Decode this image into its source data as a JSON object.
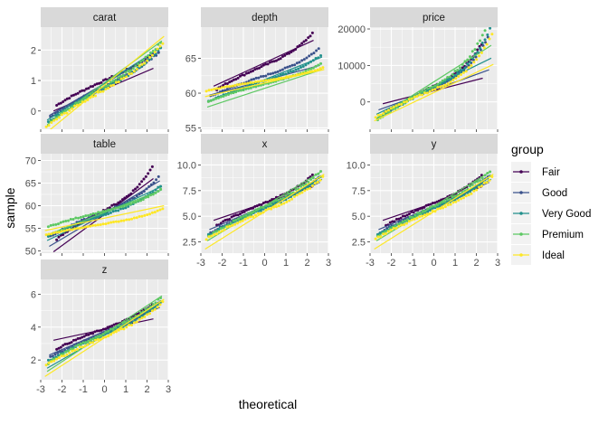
{
  "chart_data": {
    "type": "scatter",
    "subtype": "qq-plot-faceted",
    "xlabel": "theoretical",
    "ylabel": "sample",
    "legend": {
      "title": "group",
      "position": "right",
      "entries": [
        "Fair",
        "Good",
        "Very Good",
        "Premium",
        "Ideal"
      ]
    },
    "colors": {
      "Fair": "#440154",
      "Good": "#3b528b",
      "Very Good": "#21908c",
      "Premium": "#5dc863",
      "Ideal": "#fde725",
      "panel_bg": "#ebebeb",
      "strip_bg": "#d9d9d9",
      "grid": "#ffffff"
    },
    "x_ticks": [
      -3,
      -2,
      -1,
      0,
      1,
      2,
      3
    ],
    "x_tick_labels": [
      "-3",
      "-2",
      "-1",
      "0",
      "1",
      "2",
      "3"
    ],
    "x_range": [
      -3,
      3
    ],
    "facets": [
      {
        "name": "carat",
        "ylim": [
          -0.6,
          2.75
        ],
        "y_ticks": [
          0,
          1,
          2
        ],
        "y_tick_labels": [
          "0",
          "1",
          "2"
        ],
        "show_x_axis": false,
        "series": [
          {
            "group": "Fair",
            "line": [
              [
                -2.4,
                0.0
              ],
              [
                2.3,
                1.4
              ]
            ],
            "xmin": -2.3,
            "xmax": 2.3,
            "center": 1.0,
            "spread": 0.33,
            "tail": 0.6
          },
          {
            "group": "Good",
            "line": [
              [
                -2.6,
                -0.15
              ],
              [
                2.6,
                1.95
              ]
            ],
            "xmin": -2.6,
            "xmax": 2.6,
            "center": 0.8,
            "spread": 0.4,
            "tail": 0.9
          },
          {
            "group": "Very Good",
            "line": [
              [
                -2.7,
                -0.3
              ],
              [
                2.7,
                2.1
              ]
            ],
            "xmin": -2.7,
            "xmax": 2.7,
            "center": 0.75,
            "spread": 0.45,
            "tail": 1.1
          },
          {
            "group": "Premium",
            "line": [
              [
                -2.7,
                -0.45
              ],
              [
                2.7,
                2.3
              ]
            ],
            "xmin": -2.7,
            "xmax": 2.7,
            "center": 0.8,
            "spread": 0.5,
            "tail": 1.0
          },
          {
            "group": "Ideal",
            "line": [
              [
                -2.8,
                -0.75
              ],
              [
                2.8,
                2.45
              ]
            ],
            "xmin": -2.8,
            "xmax": 2.8,
            "center": 0.7,
            "spread": 0.5,
            "tail": 1.3
          }
        ]
      },
      {
        "name": "depth",
        "ylim": [
          54.8,
          69.5
        ],
        "y_ticks": [
          55,
          60,
          65
        ],
        "y_tick_labels": [
          "55",
          "60",
          "65"
        ],
        "show_x_axis": false,
        "series": [
          {
            "group": "Fair",
            "line": [
              [
                -2.4,
                61.0
              ],
              [
                2.3,
                67.6
              ]
            ],
            "xmin": -2.3,
            "xmax": 2.3,
            "center": 64.0,
            "spread": 1.4,
            "tail": 1.6
          },
          {
            "group": "Good",
            "line": [
              [
                -2.6,
                59.7
              ],
              [
                2.6,
                64.0
              ]
            ],
            "xmin": -2.6,
            "xmax": 2.6,
            "center": 62.5,
            "spread": 1.2,
            "tail": 1.5
          },
          {
            "group": "Very Good",
            "line": [
              [
                -2.7,
                58.7
              ],
              [
                2.7,
                65.2
              ]
            ],
            "xmin": -2.7,
            "xmax": 2.7,
            "center": 61.8,
            "spread": 1.2,
            "tail": 1.2
          },
          {
            "group": "Premium",
            "line": [
              [
                -2.7,
                58.0
              ],
              [
                2.7,
                63.4
              ]
            ],
            "xmin": -2.7,
            "xmax": 2.7,
            "center": 61.3,
            "spread": 1.0,
            "tail": 1.1
          },
          {
            "group": "Ideal",
            "line": [
              [
                -2.8,
                59.5
              ],
              [
                2.8,
                63.4
              ]
            ],
            "xmin": -2.8,
            "xmax": 2.8,
            "center": 61.8,
            "spread": 0.6,
            "tail": 1.3
          }
        ]
      },
      {
        "name": "price",
        "ylim": [
          -7500,
          20500
        ],
        "y_ticks": [
          0,
          10000,
          20000
        ],
        "y_tick_labels": [
          "0",
          "10000",
          "20000"
        ],
        "show_x_axis": false,
        "series": [
          {
            "group": "Fair",
            "line": [
              [
                -2.4,
                -500
              ],
              [
                2.3,
                6500
              ]
            ],
            "xmin": -2.3,
            "xmax": 2.3,
            "center": 4300,
            "spread": 3000,
            "tail": 2.4
          },
          {
            "group": "Good",
            "line": [
              [
                -2.6,
                -2200
              ],
              [
                2.6,
                8800
              ]
            ],
            "xmin": -2.6,
            "xmax": 2.6,
            "center": 3900,
            "spread": 3200,
            "tail": 3.0
          },
          {
            "group": "Very Good",
            "line": [
              [
                -2.7,
                -3400
              ],
              [
                2.7,
                12000
              ]
            ],
            "xmin": -2.7,
            "xmax": 2.7,
            "center": 3900,
            "spread": 3500,
            "tail": 3.4
          },
          {
            "group": "Premium",
            "line": [
              [
                -2.7,
                -4500
              ],
              [
                2.7,
                15500
              ]
            ],
            "xmin": -2.7,
            "xmax": 2.7,
            "center": 4500,
            "spread": 3900,
            "tail": 3.6
          },
          {
            "group": "Ideal",
            "line": [
              [
                -2.8,
                -5200
              ],
              [
                2.8,
                10300
              ]
            ],
            "xmin": -2.8,
            "xmax": 2.8,
            "center": 3400,
            "spread": 3100,
            "tail": 3.8
          }
        ]
      },
      {
        "name": "table",
        "ylim": [
          49.5,
          71.5
        ],
        "y_ticks": [
          50,
          55,
          60,
          65,
          70
        ],
        "y_tick_labels": [
          "50",
          "55",
          "60",
          "65",
          "70"
        ],
        "show_x_axis": false,
        "series": [
          {
            "group": "Fair",
            "line": [
              [
                -2.4,
                49.8
              ],
              [
                2.3,
                66.0
              ]
            ],
            "xmin": -2.3,
            "xmax": 2.3,
            "center": 59.0,
            "spread": 2.6,
            "tail": 2.2
          },
          {
            "group": "Good",
            "line": [
              [
                -2.6,
                51.0
              ],
              [
                2.6,
                65.5
              ]
            ],
            "xmin": -2.6,
            "xmax": 2.6,
            "center": 58.7,
            "spread": 2.2,
            "tail": 1.8
          },
          {
            "group": "Very Good",
            "line": [
              [
                -2.7,
                52.3
              ],
              [
                2.7,
                64.3
              ]
            ],
            "xmin": -2.7,
            "xmax": 2.7,
            "center": 58.0,
            "spread": 1.9,
            "tail": 1.7
          },
          {
            "group": "Premium",
            "line": [
              [
                -2.7,
                53.5
              ],
              [
                2.7,
                63.5
              ]
            ],
            "xmin": -2.7,
            "xmax": 2.7,
            "center": 58.8,
            "spread": 1.4,
            "tail": 1.8
          },
          {
            "group": "Ideal",
            "line": [
              [
                -2.8,
                54.5
              ],
              [
                2.8,
                60.0
              ]
            ],
            "xmin": -2.8,
            "xmax": 2.8,
            "center": 56.0,
            "spread": 1.0,
            "tail": 1.6
          }
        ]
      },
      {
        "name": "x",
        "ylim": [
          1.4,
          11.1
        ],
        "y_ticks": [
          2.5,
          5.0,
          7.5,
          10.0
        ],
        "y_tick_labels": [
          "2.5",
          "5.0",
          "7.5",
          "10.0"
        ],
        "show_x_axis": true,
        "series": [
          {
            "group": "Fair",
            "line": [
              [
                -2.4,
                4.6
              ],
              [
                2.3,
                7.9
              ]
            ],
            "xmin": -2.3,
            "xmax": 2.3,
            "center": 6.3,
            "spread": 0.9,
            "tail": 1.2
          },
          {
            "group": "Good",
            "line": [
              [
                -2.6,
                3.7
              ],
              [
                2.6,
                8.3
              ]
            ],
            "xmin": -2.6,
            "xmax": 2.6,
            "center": 5.85,
            "spread": 1.0,
            "tail": 1.2
          },
          {
            "group": "Very Good",
            "line": [
              [
                -2.7,
                3.1
              ],
              [
                2.7,
                8.6
              ]
            ],
            "xmin": -2.7,
            "xmax": 2.7,
            "center": 5.75,
            "spread": 1.05,
            "tail": 1.2
          },
          {
            "group": "Premium",
            "line": [
              [
                -2.7,
                2.6
              ],
              [
                2.7,
                9.4
              ]
            ],
            "xmin": -2.7,
            "xmax": 2.7,
            "center": 5.97,
            "spread": 1.2,
            "tail": 1.0
          },
          {
            "group": "Ideal",
            "line": [
              [
                -2.8,
                1.8
              ],
              [
                2.8,
                9.1
              ]
            ],
            "xmin": -2.8,
            "xmax": 2.8,
            "center": 5.5,
            "spread": 1.1,
            "tail": 1.2
          }
        ]
      },
      {
        "name": "y",
        "ylim": [
          1.4,
          11.1
        ],
        "y_ticks": [
          2.5,
          5.0,
          7.5,
          10.0
        ],
        "y_tick_labels": [
          "2.5",
          "5.0",
          "7.5",
          "10.0"
        ],
        "show_x_axis": true,
        "series": [
          {
            "group": "Fair",
            "line": [
              [
                -2.4,
                4.6
              ],
              [
                2.3,
                7.9
              ]
            ],
            "xmin": -2.3,
            "xmax": 2.3,
            "center": 6.3,
            "spread": 0.9,
            "tail": 1.2
          },
          {
            "group": "Good",
            "line": [
              [
                -2.6,
                3.7
              ],
              [
                2.6,
                8.3
              ]
            ],
            "xmin": -2.6,
            "xmax": 2.6,
            "center": 5.85,
            "spread": 1.0,
            "tail": 1.2
          },
          {
            "group": "Very Good",
            "line": [
              [
                -2.7,
                3.1
              ],
              [
                2.7,
                8.6
              ]
            ],
            "xmin": -2.7,
            "xmax": 2.7,
            "center": 5.75,
            "spread": 1.05,
            "tail": 1.2
          },
          {
            "group": "Premium",
            "line": [
              [
                -2.7,
                2.6
              ],
              [
                2.7,
                9.4
              ]
            ],
            "xmin": -2.7,
            "xmax": 2.7,
            "center": 5.97,
            "spread": 1.2,
            "tail": 1.0
          },
          {
            "group": "Ideal",
            "line": [
              [
                -2.8,
                1.8
              ],
              [
                2.8,
                9.1
              ]
            ],
            "xmin": -2.8,
            "xmax": 2.8,
            "center": 5.5,
            "spread": 1.1,
            "tail": 1.2
          }
        ]
      },
      {
        "name": "z",
        "ylim": [
          0.8,
          6.9
        ],
        "y_ticks": [
          2,
          4,
          6
        ],
        "y_tick_labels": [
          "2",
          "4",
          "6"
        ],
        "show_x_axis": true,
        "series": [
          {
            "group": "Fair",
            "line": [
              [
                -2.4,
                3.2
              ],
              [
                2.3,
                4.5
              ]
            ],
            "xmin": -2.3,
            "xmax": 2.3,
            "center": 3.9,
            "spread": 0.5,
            "tail": 1.2
          },
          {
            "group": "Good",
            "line": [
              [
                -2.6,
                2.3
              ],
              [
                2.6,
                5.2
              ]
            ],
            "xmin": -2.6,
            "xmax": 2.6,
            "center": 3.65,
            "spread": 0.6,
            "tail": 1.2
          },
          {
            "group": "Very Good",
            "line": [
              [
                -2.7,
                1.5
              ],
              [
                2.7,
                5.5
              ]
            ],
            "xmin": -2.7,
            "xmax": 2.7,
            "center": 3.55,
            "spread": 0.65,
            "tail": 1.2
          },
          {
            "group": "Premium",
            "line": [
              [
                -2.7,
                1.3
              ],
              [
                2.7,
                5.9
              ]
            ],
            "xmin": -2.7,
            "xmax": 2.7,
            "center": 3.65,
            "spread": 0.75,
            "tail": 1.0
          },
          {
            "group": "Ideal",
            "line": [
              [
                -2.8,
                1.0
              ],
              [
                2.8,
                5.7
              ]
            ],
            "xmin": -2.8,
            "xmax": 2.8,
            "center": 3.4,
            "spread": 0.7,
            "tail": 1.2
          }
        ]
      }
    ]
  }
}
